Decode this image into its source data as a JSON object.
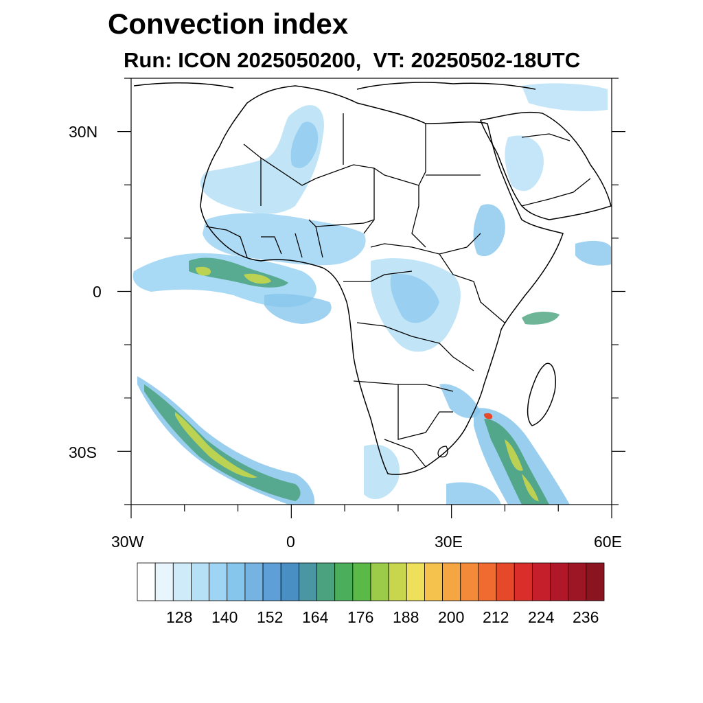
{
  "title": "Convection index",
  "subtitle": "Run: ICON 2025050200,  VT: 20250502-18UTC",
  "map": {
    "lon_range": [
      -30,
      60
    ],
    "lat_range": [
      -40,
      40
    ],
    "lat_ticks": [
      {
        "value": 30,
        "label": "30N"
      },
      {
        "value": 0,
        "label": "0"
      },
      {
        "value": -30,
        "label": "30S"
      }
    ],
    "lon_ticks": [
      {
        "value": -30,
        "label": "30W"
      },
      {
        "value": 0,
        "label": "0"
      },
      {
        "value": 30,
        "label": "30E"
      },
      {
        "value": 60,
        "label": "60E"
      }
    ]
  },
  "colorbar": {
    "colors": [
      "#ffffff",
      "#e8f5fc",
      "#cfeaf8",
      "#b6e0f6",
      "#9fd5f4",
      "#87c6ec",
      "#74b3e2",
      "#5d9fd6",
      "#4a8fc4",
      "#4a96a3",
      "#4aa27e",
      "#4bae5a",
      "#5bb948",
      "#9ccb4a",
      "#c8d64d",
      "#eee05a",
      "#f6c24e",
      "#f5a542",
      "#f38a3a",
      "#ef6b2f",
      "#e5492a",
      "#d92e2a",
      "#c51f2c",
      "#b0182a",
      "#9c1626",
      "#8a1420"
    ],
    "labels": [
      "128",
      "140",
      "152",
      "164",
      "176",
      "188",
      "200",
      "212",
      "224",
      "236"
    ]
  }
}
